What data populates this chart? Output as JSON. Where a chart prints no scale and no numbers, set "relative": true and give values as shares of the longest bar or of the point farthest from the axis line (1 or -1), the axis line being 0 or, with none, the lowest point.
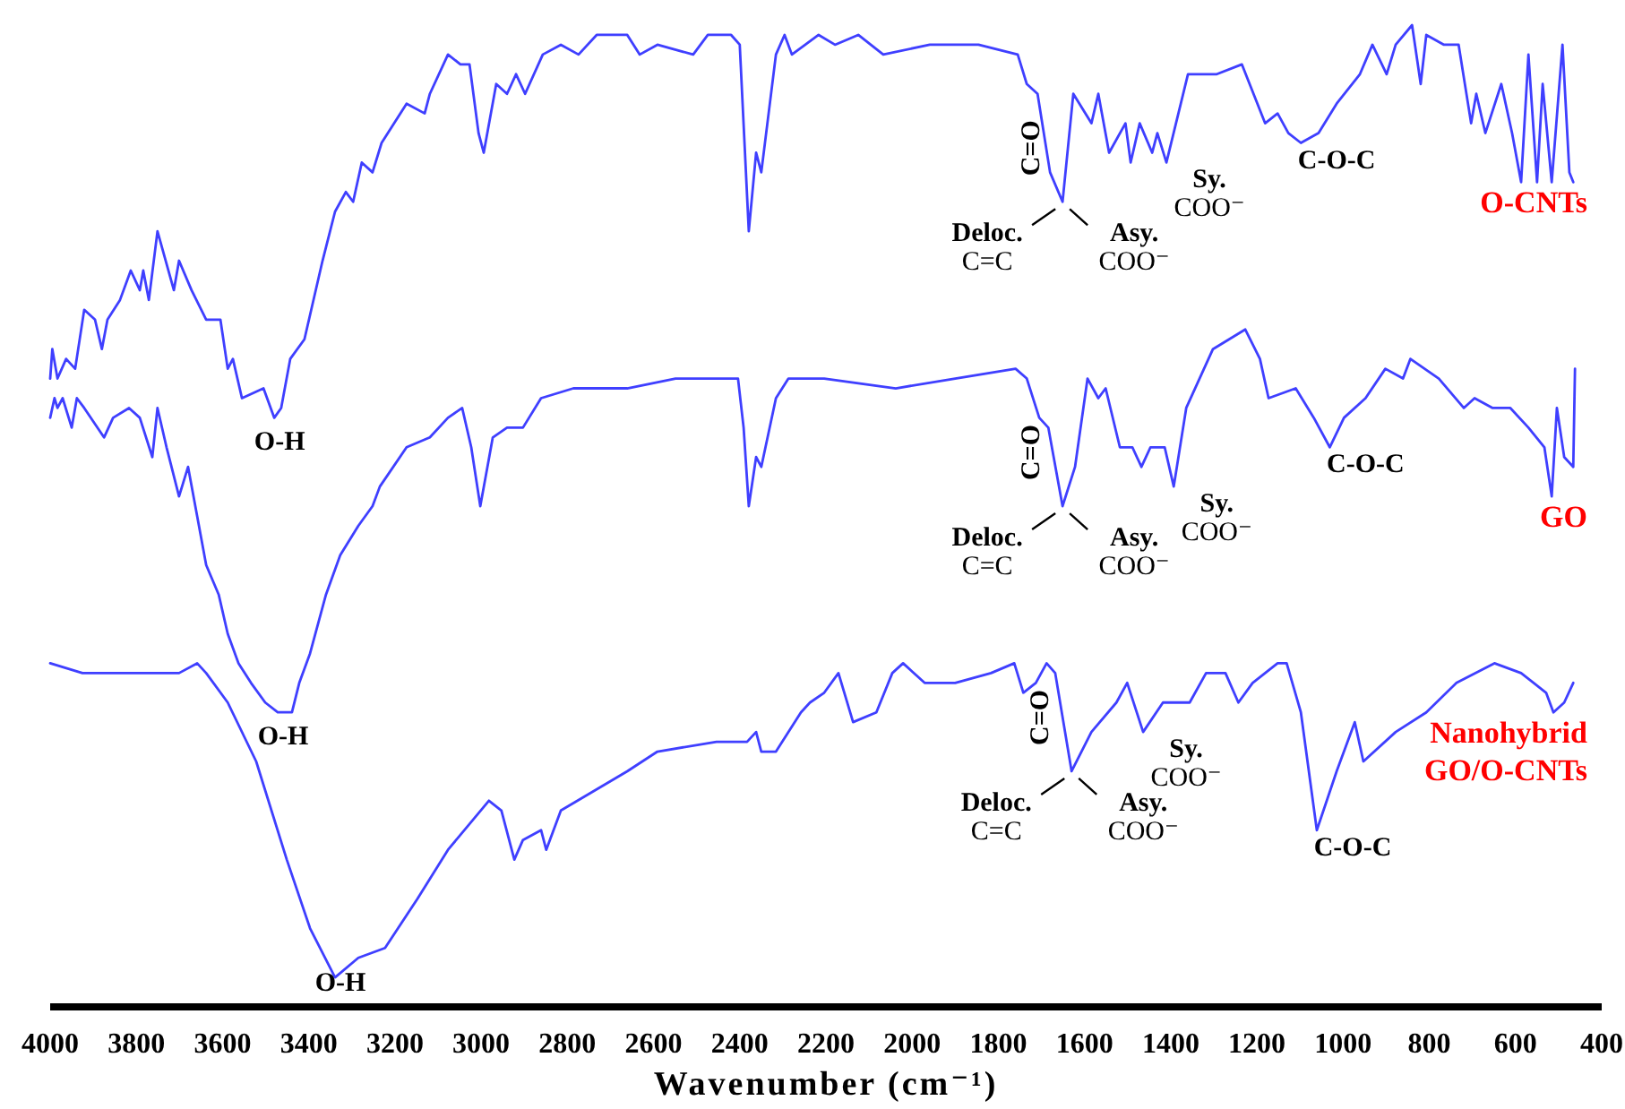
{
  "chart_data": {
    "type": "line",
    "relative": true,
    "xlabel": "Wavenumber (cm⁻¹)",
    "xlim": [
      4000,
      400
    ],
    "xticks": [
      4000,
      3800,
      3600,
      3400,
      3200,
      3000,
      2800,
      2600,
      2400,
      2200,
      2000,
      1800,
      1600,
      1400,
      1200,
      1000,
      800,
      600,
      400
    ],
    "series": [
      {
        "name": "O-CNTs",
        "color": "#3f3fff",
        "x": [
          4000,
          3995,
          3983,
          3963,
          3942,
          3921,
          3896,
          3880,
          3867,
          3838,
          3813,
          3792,
          3784,
          3771,
          3751,
          3713,
          3701,
          3672,
          3638,
          3605,
          3588,
          3576,
          3555,
          3505,
          3480,
          3464,
          3443,
          3410,
          3368,
          3339,
          3314,
          3297,
          3277,
          3252,
          3231,
          3173,
          3131,
          3119,
          3077,
          3048,
          3027,
          3006,
          2994,
          2965,
          2940,
          2919,
          2898,
          2857,
          2815,
          2774,
          2732,
          2703,
          2661,
          2632,
          2591,
          2508,
          2474,
          2420,
          2400,
          2379,
          2362,
          2350,
          2316,
          2296,
          2279,
          2217,
          2179,
          2125,
          2067,
          1959,
          1846,
          1755,
          1734,
          1709,
          1680,
          1651,
          1626,
          1584,
          1568,
          1543,
          1505,
          1493,
          1472,
          1443,
          1431,
          1410,
          1360,
          1293,
          1235,
          1181,
          1152,
          1127,
          1098,
          1057,
          1015,
          961,
          932,
          899,
          878,
          840,
          820,
          807,
          766,
          732,
          703,
          691,
          670,
          633,
          608,
          587,
          570,
          550,
          537,
          516,
          491,
          475,
          466
        ],
        "values": [
          0.64,
          0.67,
          0.64,
          0.66,
          0.65,
          0.71,
          0.7,
          0.67,
          0.7,
          0.72,
          0.75,
          0.73,
          0.75,
          0.72,
          0.79,
          0.73,
          0.76,
          0.73,
          0.7,
          0.7,
          0.65,
          0.66,
          0.62,
          0.63,
          0.6,
          0.61,
          0.66,
          0.68,
          0.76,
          0.81,
          0.83,
          0.82,
          0.86,
          0.85,
          0.88,
          0.92,
          0.91,
          0.93,
          0.97,
          0.96,
          0.96,
          0.89,
          0.87,
          0.94,
          0.93,
          0.95,
          0.93,
          0.97,
          0.98,
          0.97,
          0.99,
          0.99,
          0.99,
          0.97,
          0.98,
          0.97,
          0.99,
          0.99,
          0.98,
          0.79,
          0.87,
          0.85,
          0.97,
          0.99,
          0.97,
          0.99,
          0.98,
          0.99,
          0.97,
          0.98,
          0.98,
          0.97,
          0.94,
          0.93,
          0.85,
          0.82,
          0.93,
          0.9,
          0.93,
          0.87,
          0.9,
          0.86,
          0.9,
          0.87,
          0.89,
          0.86,
          0.95,
          0.95,
          0.96,
          0.9,
          0.91,
          0.89,
          0.88,
          0.89,
          0.92,
          0.95,
          0.98,
          0.95,
          0.98,
          1,
          0.94,
          0.99,
          0.98,
          0.98,
          0.9,
          0.93,
          0.89,
          0.94,
          0.89,
          0.84,
          0.97,
          0.84,
          0.94,
          0.84,
          0.98,
          0.85,
          0.84
        ]
      },
      {
        "name": "GO",
        "color": "#3f3fff",
        "x": [
          4000,
          3990,
          3983,
          3971,
          3950,
          3938,
          3921,
          3875,
          3854,
          3817,
          3792,
          3763,
          3751,
          3730,
          3701,
          3680,
          3659,
          3638,
          3609,
          3588,
          3563,
          3534,
          3501,
          3472,
          3439,
          3422,
          3397,
          3360,
          3327,
          3285,
          3252,
          3235,
          3173,
          3119,
          3077,
          3044,
          3023,
          3002,
          2973,
          2940,
          2903,
          2861,
          2786,
          2661,
          2549,
          2454,
          2404,
          2391,
          2379,
          2362,
          2350,
          2316,
          2287,
          2204,
          2038,
          1900,
          1760,
          1734,
          1705,
          1684,
          1651,
          1622,
          1593,
          1568,
          1551,
          1518,
          1489,
          1468,
          1447,
          1414,
          1393,
          1364,
          1302,
          1227,
          1193,
          1173,
          1110,
          1068,
          1031,
          998,
          948,
          902,
          861,
          844,
          778,
          720,
          695,
          653,
          612,
          570,
          533,
          516,
          504,
          487,
          466,
          462
        ],
        "values": [
          0.6,
          0.62,
          0.61,
          0.62,
          0.59,
          0.62,
          0.61,
          0.58,
          0.6,
          0.61,
          0.6,
          0.56,
          0.61,
          0.57,
          0.52,
          0.55,
          0.5,
          0.45,
          0.42,
          0.38,
          0.35,
          0.33,
          0.31,
          0.3,
          0.3,
          0.33,
          0.36,
          0.42,
          0.46,
          0.49,
          0.51,
          0.53,
          0.57,
          0.58,
          0.6,
          0.61,
          0.57,
          0.51,
          0.58,
          0.59,
          0.59,
          0.62,
          0.63,
          0.63,
          0.64,
          0.64,
          0.64,
          0.59,
          0.51,
          0.56,
          0.55,
          0.62,
          0.64,
          0.64,
          0.63,
          0.64,
          0.65,
          0.64,
          0.6,
          0.59,
          0.51,
          0.55,
          0.64,
          0.62,
          0.63,
          0.57,
          0.57,
          0.55,
          0.57,
          0.57,
          0.53,
          0.61,
          0.67,
          0.69,
          0.66,
          0.62,
          0.63,
          0.6,
          0.57,
          0.6,
          0.62,
          0.65,
          0.64,
          0.66,
          0.64,
          0.61,
          0.62,
          0.61,
          0.61,
          0.59,
          0.57,
          0.52,
          0.61,
          0.56,
          0.55,
          0.65
        ]
      },
      {
        "name": "Nanohybrid GO/O-CNTs",
        "color": "#3f3fff",
        "x": [
          4000,
          3925,
          3875,
          3771,
          3701,
          3659,
          3638,
          3588,
          3522,
          3451,
          3397,
          3339,
          3285,
          3223,
          3148,
          3077,
          2982,
          2953,
          2923,
          2903,
          2861,
          2849,
          2815,
          2661,
          2591,
          2454,
          2383,
          2362,
          2350,
          2316,
          2258,
          2237,
          2204,
          2171,
          2137,
          2083,
          2046,
          2021,
          1971,
          1900,
          1817,
          1763,
          1742,
          1713,
          1688,
          1668,
          1630,
          1584,
          1526,
          1501,
          1464,
          1418,
          1356,
          1318,
          1273,
          1243,
          1210,
          1152,
          1131,
          1098,
          1061,
          1015,
          973,
          953,
          878,
          807,
          737,
          649,
          587,
          529,
          512,
          487,
          466
        ],
        "values": [
          0.35,
          0.34,
          0.34,
          0.34,
          0.34,
          0.35,
          0.34,
          0.31,
          0.25,
          0.15,
          0.08,
          0.03,
          0.05,
          0.06,
          0.11,
          0.16,
          0.21,
          0.2,
          0.15,
          0.17,
          0.18,
          0.16,
          0.2,
          0.24,
          0.26,
          0.27,
          0.27,
          0.28,
          0.26,
          0.26,
          0.3,
          0.31,
          0.32,
          0.34,
          0.29,
          0.3,
          0.34,
          0.35,
          0.33,
          0.33,
          0.34,
          0.35,
          0.32,
          0.33,
          0.35,
          0.34,
          0.24,
          0.28,
          0.31,
          0.33,
          0.28,
          0.31,
          0.31,
          0.34,
          0.34,
          0.31,
          0.33,
          0.35,
          0.35,
          0.3,
          0.18,
          0.24,
          0.29,
          0.25,
          0.28,
          0.3,
          0.33,
          0.35,
          0.34,
          0.32,
          0.3,
          0.31,
          0.33
        ]
      }
    ],
    "annotations": [
      {
        "text": "O-H",
        "x": 3480,
        "y": 0.6
      },
      {
        "text": "C=O",
        "x": 1651,
        "y": 0.82
      },
      {
        "text": "Deloc.\nC=C",
        "x": 1651,
        "y": 0.82
      },
      {
        "text": "Asy.\nCOO⁻",
        "x": 1651,
        "y": 0.82
      },
      {
        "text": "Sy.\nCOO⁻",
        "x": 1410,
        "y": 0.86
      },
      {
        "text": "C-O-C",
        "x": 1098,
        "y": 0.88
      },
      {
        "text": "O-H",
        "x": 3472,
        "y": 0.3
      },
      {
        "text": "C=O",
        "x": 1651,
        "y": 0.51
      },
      {
        "text": "Deloc.\nC=C",
        "x": 1651,
        "y": 0.51
      },
      {
        "text": "Asy.\nCOO⁻",
        "x": 1651,
        "y": 0.51
      },
      {
        "text": "Sy.\nCOO⁻",
        "x": 1393,
        "y": 0.53
      },
      {
        "text": "C-O-C",
        "x": 1031,
        "y": 0.57
      },
      {
        "text": "O-H",
        "x": 3339,
        "y": 0.03
      },
      {
        "text": "C=O",
        "x": 1630,
        "y": 0.24
      },
      {
        "text": "Deloc.\nC=C",
        "x": 1630,
        "y": 0.24
      },
      {
        "text": "Asy.\nCOO⁻",
        "x": 1630,
        "y": 0.24
      },
      {
        "text": "Sy.\nCOO⁻",
        "x": 1464,
        "y": 0.28
      },
      {
        "text": "C-O-C",
        "x": 1061,
        "y": 0.18
      }
    ]
  }
}
